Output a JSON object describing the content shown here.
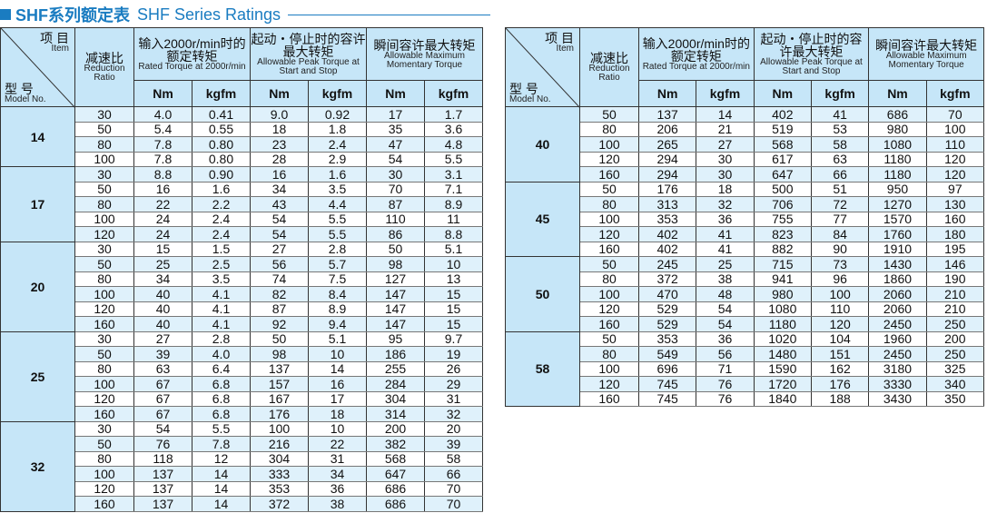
{
  "title": {
    "cn": "SHF系列额定表",
    "en": "SHF Series Ratings"
  },
  "header": {
    "item_cn": "项 目",
    "item_en": "Item",
    "model_cn": "型 号",
    "model_en": "Model No.",
    "ratio_cn": "减速比",
    "ratio_en": "Reduction Ratio",
    "rated_cn": "输入2000r/min时的额定转矩",
    "rated_en": "Rated Torque at 2000r/min",
    "peak_cn": "起动・停止时的容许最大转矩",
    "peak_en": "Allowable Peak Torque at Start and Stop",
    "mom_cn": "瞬间容许最大转矩",
    "mom_en": "Allowable Maximum Momentary Torque",
    "nm": "Nm",
    "kgfm": "kgfm"
  },
  "left_table": [
    {
      "model": "14",
      "rows": [
        [
          "30",
          "4.0",
          "0.41",
          "9.0",
          "0.92",
          "17",
          "1.7"
        ],
        [
          "50",
          "5.4",
          "0.55",
          "18",
          "1.8",
          "35",
          "3.6"
        ],
        [
          "80",
          "7.8",
          "0.80",
          "23",
          "2.4",
          "47",
          "4.8"
        ],
        [
          "100",
          "7.8",
          "0.80",
          "28",
          "2.9",
          "54",
          "5.5"
        ]
      ]
    },
    {
      "model": "17",
      "rows": [
        [
          "30",
          "8.8",
          "0.90",
          "16",
          "1.6",
          "30",
          "3.1"
        ],
        [
          "50",
          "16",
          "1.6",
          "34",
          "3.5",
          "70",
          "7.1"
        ],
        [
          "80",
          "22",
          "2.2",
          "43",
          "4.4",
          "87",
          "8.9"
        ],
        [
          "100",
          "24",
          "2.4",
          "54",
          "5.5",
          "110",
          "11"
        ],
        [
          "120",
          "24",
          "2.4",
          "54",
          "5.5",
          "86",
          "8.8"
        ]
      ]
    },
    {
      "model": "20",
      "rows": [
        [
          "30",
          "15",
          "1.5",
          "27",
          "2.8",
          "50",
          "5.1"
        ],
        [
          "50",
          "25",
          "2.5",
          "56",
          "5.7",
          "98",
          "10"
        ],
        [
          "80",
          "34",
          "3.5",
          "74",
          "7.5",
          "127",
          "13"
        ],
        [
          "100",
          "40",
          "4.1",
          "82",
          "8.4",
          "147",
          "15"
        ],
        [
          "120",
          "40",
          "4.1",
          "87",
          "8.9",
          "147",
          "15"
        ],
        [
          "160",
          "40",
          "4.1",
          "92",
          "9.4",
          "147",
          "15"
        ]
      ]
    },
    {
      "model": "25",
      "rows": [
        [
          "30",
          "27",
          "2.8",
          "50",
          "5.1",
          "95",
          "9.7"
        ],
        [
          "50",
          "39",
          "4.0",
          "98",
          "10",
          "186",
          "19"
        ],
        [
          "80",
          "63",
          "6.4",
          "137",
          "14",
          "255",
          "26"
        ],
        [
          "100",
          "67",
          "6.8",
          "157",
          "16",
          "284",
          "29"
        ],
        [
          "120",
          "67",
          "6.8",
          "167",
          "17",
          "304",
          "31"
        ],
        [
          "160",
          "67",
          "6.8",
          "176",
          "18",
          "314",
          "32"
        ]
      ]
    },
    {
      "model": "32",
      "rows": [
        [
          "30",
          "54",
          "5.5",
          "100",
          "10",
          "200",
          "20"
        ],
        [
          "50",
          "76",
          "7.8",
          "216",
          "22",
          "382",
          "39"
        ],
        [
          "80",
          "118",
          "12",
          "304",
          "31",
          "568",
          "58"
        ],
        [
          "100",
          "137",
          "14",
          "333",
          "34",
          "647",
          "66"
        ],
        [
          "120",
          "137",
          "14",
          "353",
          "36",
          "686",
          "70"
        ],
        [
          "160",
          "137",
          "14",
          "372",
          "38",
          "686",
          "70"
        ]
      ]
    }
  ],
  "right_table": [
    {
      "model": "40",
      "rows": [
        [
          "50",
          "137",
          "14",
          "402",
          "41",
          "686",
          "70"
        ],
        [
          "80",
          "206",
          "21",
          "519",
          "53",
          "980",
          "100"
        ],
        [
          "100",
          "265",
          "27",
          "568",
          "58",
          "1080",
          "110"
        ],
        [
          "120",
          "294",
          "30",
          "617",
          "63",
          "1180",
          "120"
        ],
        [
          "160",
          "294",
          "30",
          "647",
          "66",
          "1180",
          "120"
        ]
      ]
    },
    {
      "model": "45",
      "rows": [
        [
          "50",
          "176",
          "18",
          "500",
          "51",
          "950",
          "97"
        ],
        [
          "80",
          "313",
          "32",
          "706",
          "72",
          "1270",
          "130"
        ],
        [
          "100",
          "353",
          "36",
          "755",
          "77",
          "1570",
          "160"
        ],
        [
          "120",
          "402",
          "41",
          "823",
          "84",
          "1760",
          "180"
        ],
        [
          "160",
          "402",
          "41",
          "882",
          "90",
          "1910",
          "195"
        ]
      ]
    },
    {
      "model": "50",
      "rows": [
        [
          "50",
          "245",
          "25",
          "715",
          "73",
          "1430",
          "146"
        ],
        [
          "80",
          "372",
          "38",
          "941",
          "96",
          "1860",
          "190"
        ],
        [
          "100",
          "470",
          "48",
          "980",
          "100",
          "2060",
          "210"
        ],
        [
          "120",
          "529",
          "54",
          "1080",
          "110",
          "2060",
          "210"
        ],
        [
          "160",
          "529",
          "54",
          "1180",
          "120",
          "2450",
          "250"
        ]
      ]
    },
    {
      "model": "58",
      "rows": [
        [
          "50",
          "353",
          "36",
          "1020",
          "104",
          "1960",
          "200"
        ],
        [
          "80",
          "549",
          "56",
          "1480",
          "151",
          "2450",
          "250"
        ],
        [
          "100",
          "696",
          "71",
          "1590",
          "162",
          "3180",
          "325"
        ],
        [
          "120",
          "745",
          "76",
          "1720",
          "176",
          "3330",
          "340"
        ],
        [
          "160",
          "745",
          "76",
          "1840",
          "188",
          "3430",
          "350"
        ]
      ]
    }
  ],
  "colors": {
    "accent": "#1a7cc1",
    "header_bg": "#c6e6f8",
    "stripe": "#dff1fb"
  }
}
